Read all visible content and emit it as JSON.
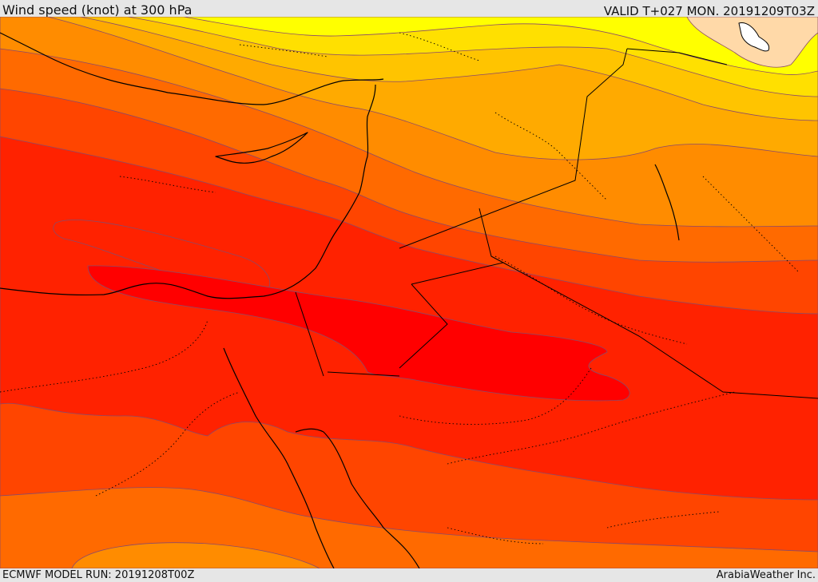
{
  "header": {
    "title": "Wind speed (knot) at 300 hPa",
    "valid": "VALID T+027 MON. 20191209T03Z"
  },
  "footer": {
    "model_run": "ECMWF MODEL RUN: 20191208T00Z",
    "credit": "ArabiaWeather Inc."
  },
  "colors": {
    "band_1": "#ffd9a8",
    "band_2": "#ffff00",
    "band_3": "#ffe000",
    "band_4": "#ffc400",
    "band_5": "#ffaa00",
    "band_6": "#ff8c00",
    "band_7": "#ff6a00",
    "band_8": "#ff4500",
    "band_9": "#ff2200",
    "band_10": "#ff0000",
    "contour_line": "#8a4a6a",
    "coastline": "#000000",
    "lake": "#ffffff"
  }
}
